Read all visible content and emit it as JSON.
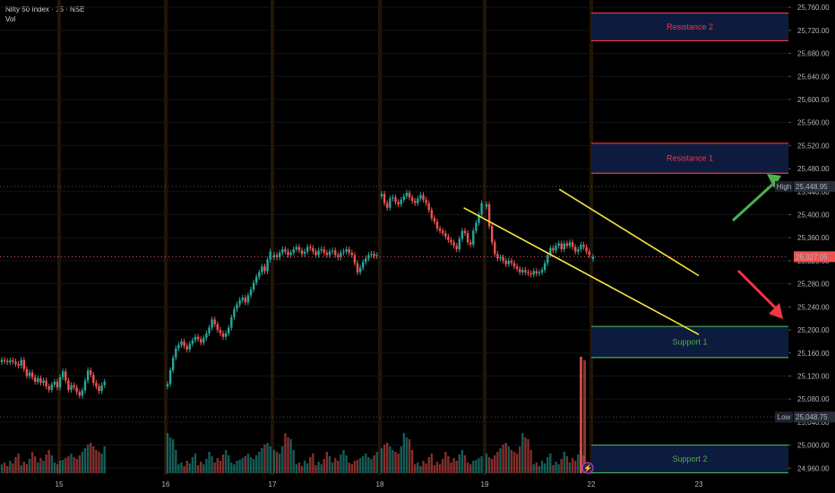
{
  "header": {
    "title": "Nifty 50 Index · 15 · NSE",
    "volume_label": "Vol"
  },
  "colors": {
    "up": "#26a69a",
    "down": "#ef5350",
    "channel": "#f5e642",
    "resistance": "#f23645",
    "support": "#4caf50",
    "zone_fill": "#0d1b3e",
    "session_band": "#2a1a0a"
  },
  "chart_data": {
    "type": "candlestick",
    "title": "Nifty 50 Index · 15 · NSE",
    "y_ticks": [
      "25,760.00",
      "25,720.00",
      "25,680.00",
      "25,640.00",
      "25,600.00",
      "25,560.00",
      "25,520.00",
      "25,480.00",
      "25,440.00",
      "25,400.00",
      "25,360.00",
      "25,320.00",
      "25,280.00",
      "25,240.00",
      "25,200.00",
      "25,160.00",
      "25,120.00",
      "25,080.00",
      "25,040.00",
      "25,000.00",
      "24,960.00"
    ],
    "y_range": [
      24948,
      25768
    ],
    "x_ticks": [
      "15",
      "16",
      "17",
      "18",
      "19",
      "22",
      "23"
    ],
    "sessions": [
      {
        "label": "15",
        "closes": [
          25148,
          25146,
          25144,
          25147,
          25145,
          25141,
          25138,
          25148,
          25132,
          25120,
          25126,
          25118,
          25110,
          25116,
          25108,
          25112,
          25102,
          25096,
          25105,
          25110,
          25100,
          25118,
          25128,
          25112,
          25096,
          25104,
          25100,
          25092,
          25086,
          25095,
          25112,
          25130,
          25122,
          25108,
          25102,
          25094,
          25104,
          25110
        ]
      },
      {
        "label": "16",
        "closes": [
          25106,
          25130,
          25152,
          25168,
          25174,
          25180,
          25172,
          25166,
          25176,
          25182,
          25188,
          25184,
          25178,
          25186,
          25194,
          25204,
          25218,
          25210,
          25200,
          25194,
          25188,
          25194,
          25204,
          25222,
          25236,
          25244,
          25252,
          25256,
          25248,
          25260,
          25270,
          25282,
          25292,
          25300,
          25310,
          25302,
          25322,
          25336
        ]
      },
      {
        "label": "17",
        "closes": [
          25330,
          25326,
          25334,
          25340,
          25336,
          25330,
          25334,
          25340,
          25344,
          25338,
          25332,
          25336,
          25344,
          25342,
          25336,
          25330,
          25338,
          25340,
          25334,
          25330,
          25336,
          25338,
          25330,
          25326,
          25334,
          25336,
          25340,
          25334,
          25330,
          25316,
          25300,
          25308,
          25318,
          25324,
          25330,
          25332,
          25328,
          25330
        ]
      },
      {
        "label": "18",
        "closes": [
          25436,
          25420,
          25412,
          25428,
          25430,
          25422,
          25418,
          25426,
          25432,
          25438,
          25430,
          25424,
          25420,
          25428,
          25434,
          25426,
          25420,
          25408,
          25394,
          25388,
          25376,
          25372,
          25368,
          25362,
          25356,
          25352,
          25346,
          25340,
          25358,
          25372,
          25368,
          25352,
          25348,
          25372,
          25386,
          25400,
          25420,
          25430
        ]
      },
      {
        "label": "19",
        "closes": [
          25418,
          25380,
          25352,
          25332,
          25324,
          25326,
          25320,
          25314,
          25320,
          25316,
          25310,
          25306,
          25300,
          25304,
          25300,
          25298,
          25296,
          25302,
          25298,
          25300,
          25304,
          25316,
          25330,
          25342,
          25338,
          25346,
          25350,
          25340,
          25350,
          25346,
          25352,
          25344,
          25336,
          25340,
          25348,
          25344,
          25336,
          25330
        ]
      },
      {
        "label": "22",
        "closes": [
          25327
        ]
      }
    ],
    "volume": [
      10,
      12,
      8,
      14,
      11,
      18,
      22,
      9,
      13,
      10,
      16,
      24,
      19,
      12,
      17,
      14,
      21,
      26,
      20,
      12,
      10,
      14,
      15,
      17,
      19,
      22,
      18,
      16,
      20,
      24,
      28,
      32,
      34,
      30,
      26,
      24,
      22,
      30,
      45,
      40,
      38,
      26
    ],
    "channel_upper": {
      "from": {
        "session": 4.7,
        "price": 25444
      },
      "to": {
        "session": 6.6,
        "price": 25294
      }
    },
    "channel_lower": {
      "from": {
        "session": 3.8,
        "price": 25412
      },
      "to": {
        "session": 6.5,
        "price": 25192
      }
    },
    "zones": [
      {
        "label": "Resistance 2",
        "top": 25750,
        "bottom": 25702,
        "kind": "resistance"
      },
      {
        "label": "Resistance 1",
        "top": 25524,
        "bottom": 25472,
        "kind": "resistance"
      },
      {
        "label": "Support 1",
        "top": 25206,
        "bottom": 25152,
        "kind": "support"
      },
      {
        "label": "Support 2",
        "top": 25000,
        "bottom": 24952,
        "kind": "support"
      }
    ],
    "price_tags": [
      {
        "prefix": "High",
        "value": "25,448.95",
        "price": 25448.95
      },
      {
        "prefix": "",
        "value": "25,327.05",
        "price": 25327.05
      },
      {
        "prefix": "Low",
        "value": "25,048.75",
        "price": 25048.75
      }
    ],
    "arrows": [
      {
        "kind": "up",
        "color": "#4caf50"
      },
      {
        "kind": "down",
        "color": "#f23645"
      }
    ]
  }
}
